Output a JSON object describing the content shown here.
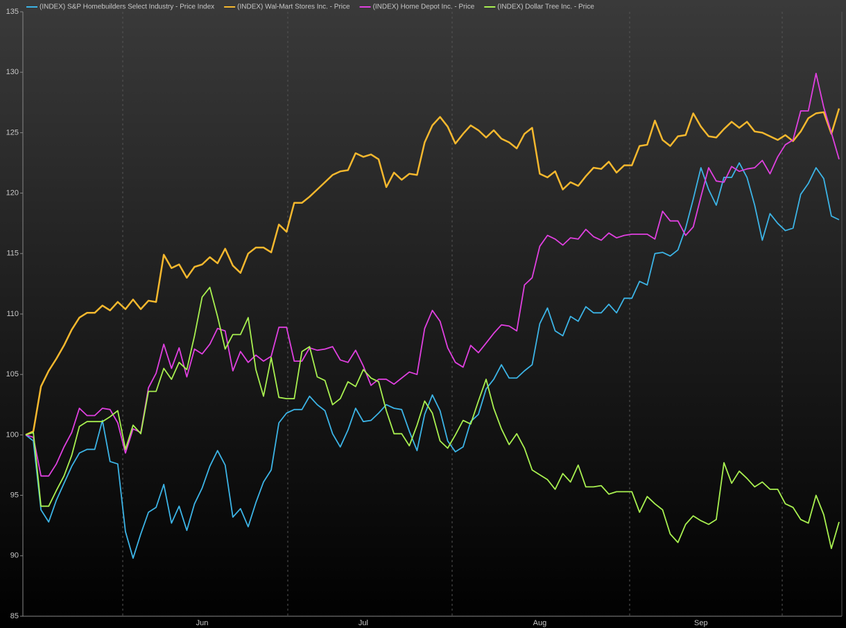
{
  "chart_data": {
    "type": "line",
    "categories": [
      null,
      null,
      null,
      null,
      null,
      null,
      null,
      null,
      null,
      null,
      null,
      null,
      null,
      null,
      null,
      null,
      null,
      null,
      null,
      null,
      null,
      null,
      null,
      "Jun",
      null,
      null,
      null,
      null,
      null,
      null,
      null,
      null,
      null,
      null,
      null,
      null,
      null,
      null,
      null,
      null,
      null,
      null,
      null,
      null,
      "Jul",
      null,
      null,
      null,
      null,
      null,
      null,
      null,
      null,
      null,
      null,
      null,
      null,
      null,
      null,
      null,
      null,
      null,
      null,
      null,
      null,
      null,
      null,
      "Aug",
      null,
      null,
      null,
      null,
      null,
      null,
      null,
      null,
      null,
      null,
      null,
      null,
      null,
      null,
      null,
      null,
      null,
      null,
      null,
      null,
      "Sep",
      null,
      null,
      null,
      null,
      null,
      null,
      null,
      null,
      null,
      null,
      null,
      null,
      null,
      null,
      null,
      null,
      null,
      null
    ],
    "series": [
      {
        "name": "(INDEX) S&P Homebuilders Select Industry - Price Index",
        "color": "#3cb4e6",
        "values": [
          100,
          99.5,
          93.8,
          92.8,
          94.6,
          96,
          97.4,
          98.5,
          98.8,
          98.8,
          101.2,
          97.8,
          97.6,
          92,
          89.8,
          91.8,
          93.6,
          94,
          95.9,
          92.7,
          94.1,
          92.1,
          94.3,
          95.6,
          97.4,
          98.7,
          97.5,
          93.2,
          93.9,
          92.4,
          94.4,
          96.1,
          97.1,
          101,
          101.8,
          102.1,
          102.1,
          103.2,
          102.5,
          102,
          100.1,
          99,
          100.4,
          102.2,
          101.1,
          101.2,
          101.8,
          102.5,
          102.2,
          102.1,
          100.3,
          98.7,
          101.7,
          103.3,
          102,
          99.5,
          98.6,
          99,
          101.1,
          101.7,
          103.8,
          104.6,
          105.8,
          104.7,
          104.7,
          105.3,
          105.8,
          109.2,
          110.5,
          108.6,
          108.2,
          109.8,
          109.4,
          110.6,
          110.1,
          110.1,
          110.8,
          110.1,
          111.3,
          111.3,
          112.7,
          112.4,
          115,
          115.1,
          114.8,
          115.3,
          117.1,
          119.5,
          122.1,
          120.3,
          119,
          121.3,
          121.3,
          122.5,
          121.3,
          119,
          116.1,
          118.3,
          117.5,
          116.9,
          117.1,
          119.9,
          120.8,
          122.1,
          121.2,
          118.1,
          117.8
        ]
      },
      {
        "name": "(INDEX) Wal-Mart Stores Inc. - Price",
        "color": "#f5b82e",
        "values": [
          100,
          100.3,
          104,
          105.3,
          106.3,
          107.4,
          108.7,
          109.7,
          110.1,
          110.1,
          110.7,
          110.3,
          111,
          110.4,
          111.2,
          110.4,
          111.1,
          111,
          114.9,
          113.8,
          114.1,
          113,
          113.9,
          114.1,
          114.7,
          114.2,
          115.4,
          114,
          113.4,
          115,
          115.5,
          115.5,
          115.1,
          117.4,
          116.8,
          119.2,
          119.2,
          119.7,
          120.3,
          120.9,
          121.5,
          121.8,
          121.9,
          123.3,
          123,
          123.2,
          122.8,
          120.5,
          121.7,
          121.1,
          121.6,
          121.5,
          124.2,
          125.6,
          126.3,
          125.5,
          124.1,
          124.9,
          125.6,
          125.2,
          124.6,
          125.2,
          124.5,
          124.2,
          123.7,
          124.9,
          125.4,
          121.6,
          121.3,
          121.8,
          120.3,
          120.9,
          120.6,
          121.4,
          122.1,
          122,
          122.6,
          121.7,
          122.3,
          122.3,
          123.9,
          124,
          126,
          124.4,
          123.9,
          124.7,
          124.8,
          126.6,
          125.5,
          124.7,
          124.6,
          125.3,
          125.9,
          125.4,
          125.9,
          125.1,
          125,
          124.7,
          124.4,
          124.8,
          124.3,
          125.1,
          126.2,
          126.6,
          126.7,
          124.9,
          127
        ]
      },
      {
        "name": "(INDEX) Home Depot Inc. - Price",
        "color": "#e040e0",
        "values": [
          100,
          99.8,
          96.6,
          96.6,
          97.6,
          99,
          100.2,
          102.2,
          101.6,
          101.6,
          102.2,
          102.1,
          101,
          98.5,
          100.5,
          100.2,
          103.9,
          105.1,
          107.5,
          105.5,
          107.2,
          104.8,
          107.1,
          106.7,
          107.5,
          108.8,
          108.6,
          105.3,
          106.9,
          106,
          106.6,
          106.1,
          106.5,
          108.9,
          108.9,
          106.1,
          106.1,
          107.2,
          107,
          107.1,
          107.3,
          106.2,
          106,
          107,
          105.7,
          104.1,
          104.6,
          104.6,
          104.2,
          104.7,
          105.2,
          105,
          108.8,
          110.3,
          109.4,
          107.2,
          106,
          105.6,
          107.4,
          106.8,
          107.6,
          108.4,
          109.1,
          109,
          108.6,
          112.4,
          113,
          115.6,
          116.5,
          116.2,
          115.7,
          116.3,
          116.2,
          117,
          116.4,
          116.1,
          116.7,
          116.3,
          116.5,
          116.6,
          116.6,
          116.6,
          116.2,
          118.5,
          117.7,
          117.7,
          116.5,
          117.2,
          119.7,
          122.1,
          121,
          120.9,
          122.2,
          121.8,
          122,
          122.1,
          122.7,
          121.6,
          123,
          124,
          124.4,
          126.8,
          126.8,
          129.9,
          127.1,
          125,
          122.8
        ]
      },
      {
        "name": "(INDEX) Dollar Tree Inc. - Price",
        "color": "#a8f050",
        "values": [
          100,
          100.2,
          94.1,
          94.1,
          95.4,
          96.6,
          98.3,
          100.7,
          101.1,
          101.1,
          101.1,
          101.5,
          102,
          98.8,
          100.8,
          100.1,
          103.6,
          103.6,
          105.5,
          104.6,
          106,
          105.4,
          108.2,
          111.4,
          112.2,
          109.8,
          107.1,
          108.3,
          108.3,
          109.7,
          105.4,
          103.2,
          106.4,
          103.1,
          103,
          103,
          106.9,
          107.3,
          104.8,
          104.5,
          102.5,
          103,
          104.4,
          104,
          105.4,
          104.7,
          104.4,
          102,
          100.1,
          100.1,
          99.1,
          100.8,
          102.8,
          101.8,
          99.5,
          98.9,
          100,
          101.2,
          100.9,
          102.8,
          104.6,
          102.2,
          100.5,
          99.2,
          100.1,
          98.9,
          97.1,
          96.7,
          96.3,
          95.5,
          96.8,
          96.1,
          97.5,
          95.7,
          95.7,
          95.8,
          95.1,
          95.3,
          95.3,
          95.3,
          93.6,
          94.9,
          94.3,
          93.8,
          91.8,
          91.1,
          92.6,
          93.3,
          92.9,
          92.6,
          93,
          97.7,
          96,
          97,
          96.4,
          95.7,
          96.1,
          95.5,
          95.5,
          94.3,
          94,
          93,
          92.7,
          95,
          93.4,
          90.6,
          92.8
        ]
      }
    ],
    "ylim": [
      85,
      135
    ],
    "yticks": [
      85,
      90,
      95,
      100,
      105,
      110,
      115,
      120,
      125,
      130,
      135
    ],
    "legend": "top-left"
  }
}
